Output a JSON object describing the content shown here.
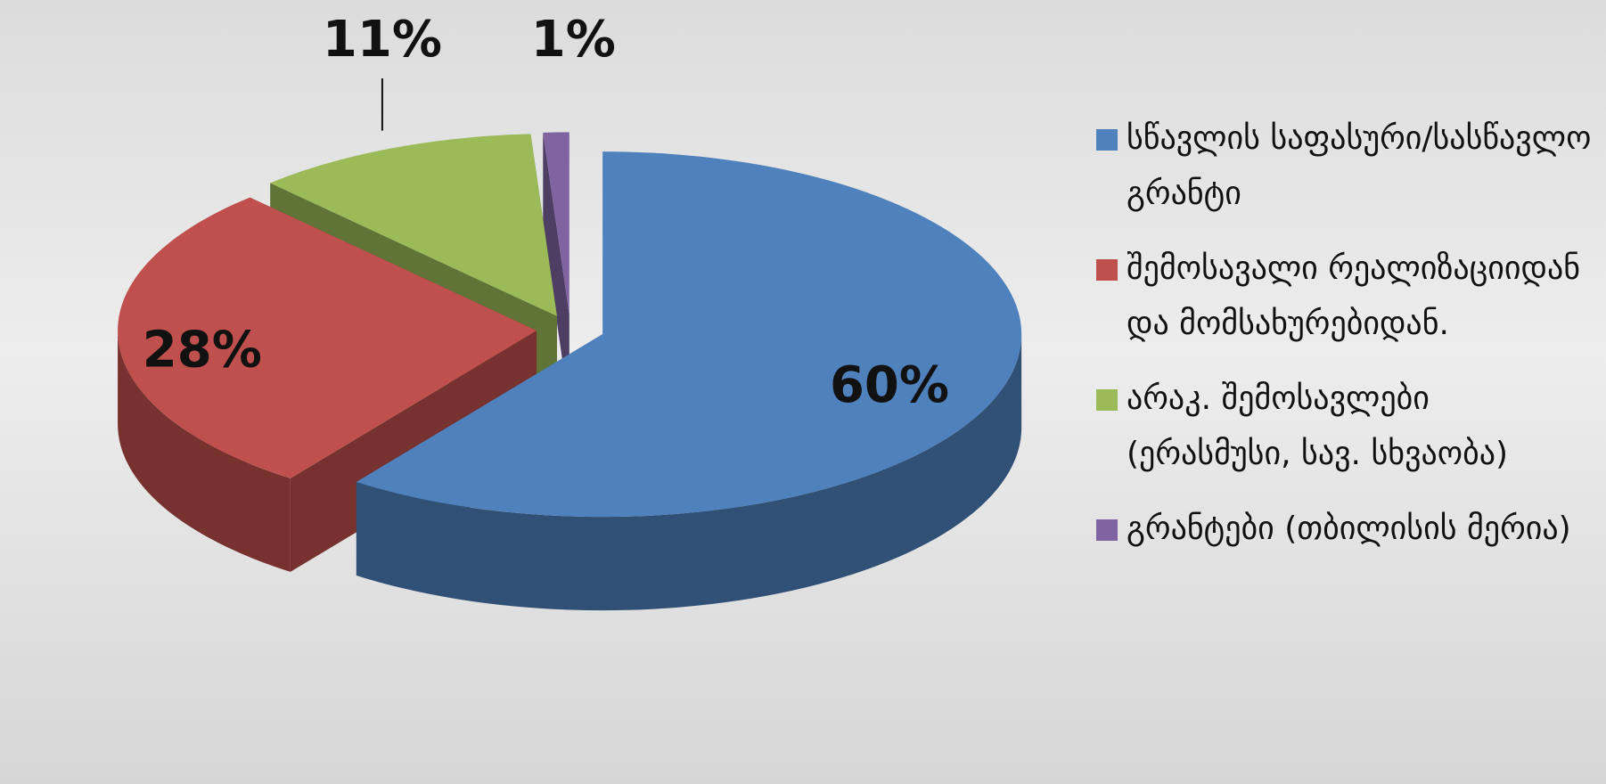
{
  "chart_data": {
    "type": "pie3d",
    "categories": [
      "სწავლის საფასური/სასწავლო გრანტი",
      "შემოსავალი რეალიზაციიდან და მომსახურებიდან.",
      "არაკ. შემოსავლები (ერასმუსი, სავ. სხვაობა)",
      "გრანტები (თბილისის მერია)"
    ],
    "values": [
      60,
      28,
      11,
      1
    ],
    "value_labels": [
      "60%",
      "28%",
      "11%",
      "1%"
    ],
    "colors": [
      "#4f81bd",
      "#c0504d",
      "#9bbb59",
      "#8064a2"
    ],
    "legend": "right"
  }
}
